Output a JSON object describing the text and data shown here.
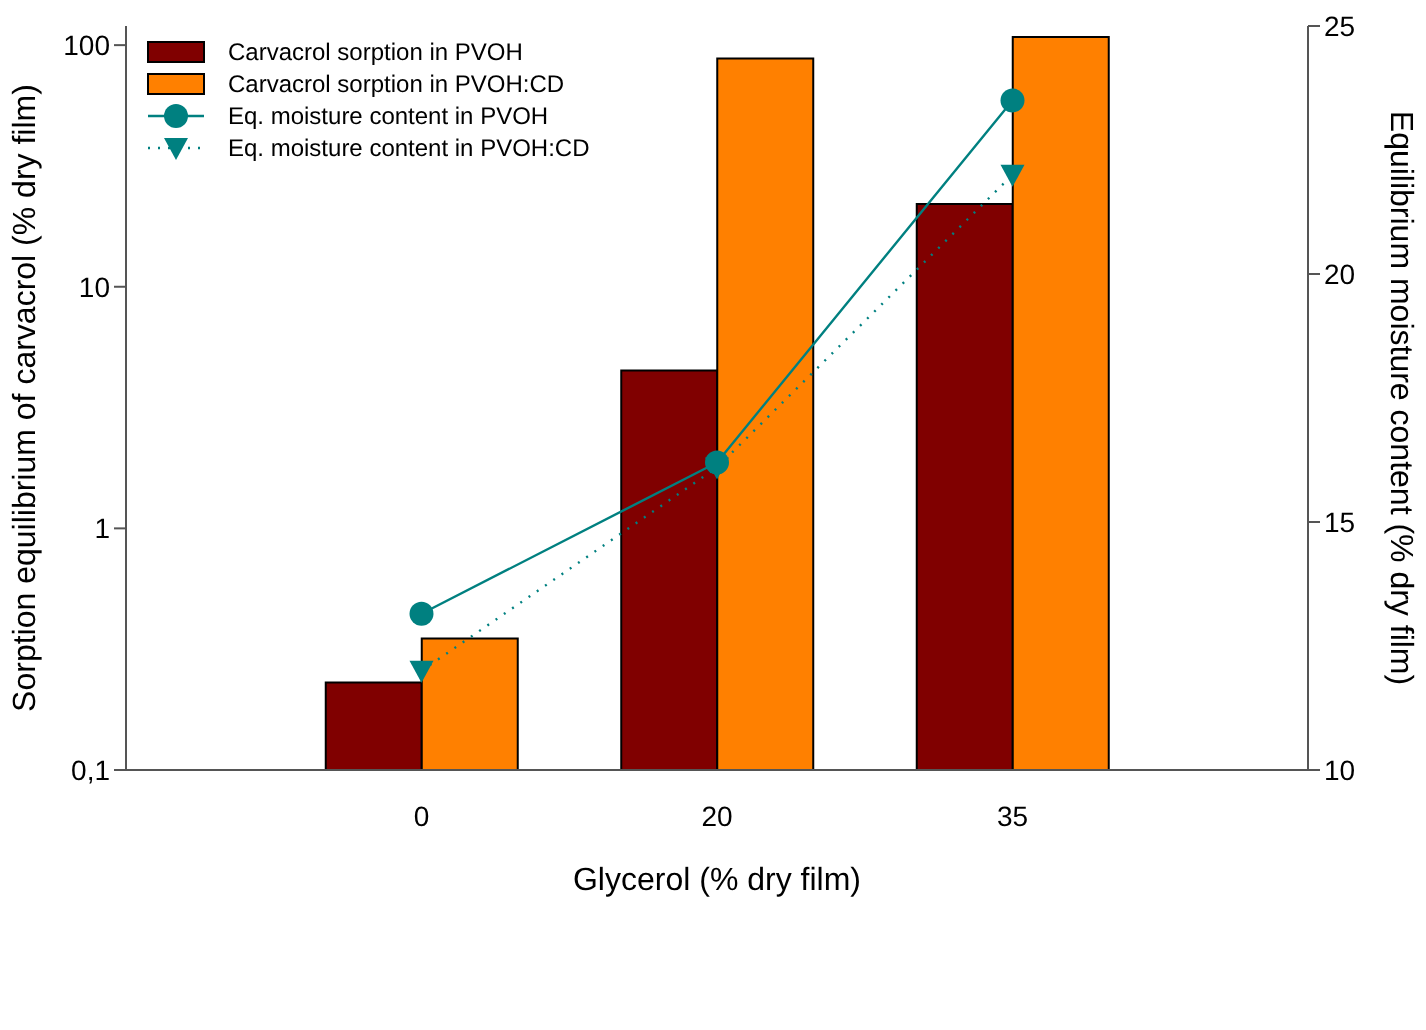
{
  "chart_data": {
    "type": "bar",
    "xlabel": "Glycerol (% dry film)",
    "ylabel": "Sorption equilibrium of carvacrol (% dry film)",
    "y2label": "Equilibrium moisture content (% dry film)",
    "categories": [
      "0",
      "20",
      "35"
    ],
    "series": [
      {
        "name": "Carvacrol sorption in PVOH",
        "color": "#800000",
        "values": [
          0.23,
          4.5,
          22
        ]
      },
      {
        "name": "Carvacrol sorption in PVOH:CD",
        "color": "#ff8000",
        "values": [
          0.35,
          88,
          108
        ]
      },
      {
        "name": "Eq. moisture content in PVOH",
        "type": "line",
        "axis": "y2",
        "color": "#008080",
        "marker": "circle",
        "line_style": "solid",
        "values": [
          13.15,
          16.2,
          23.5
        ]
      },
      {
        "name": "Eq. moisture content in PVOH:CD",
        "type": "line",
        "axis": "y2",
        "color": "#008080",
        "marker": "triangle",
        "line_style": "dotted",
        "values": [
          12.0,
          16.1,
          22.0
        ]
      }
    ],
    "log": "y",
    "ylim": [
      0.1,
      120
    ],
    "yticks": [
      {
        "value": 0.1,
        "label": "0,1"
      },
      1,
      10,
      100
    ],
    "y2lim": [
      10,
      25
    ],
    "y2ticks": [
      10,
      15,
      20,
      25
    ],
    "legend": "top left",
    "grid": false
  }
}
